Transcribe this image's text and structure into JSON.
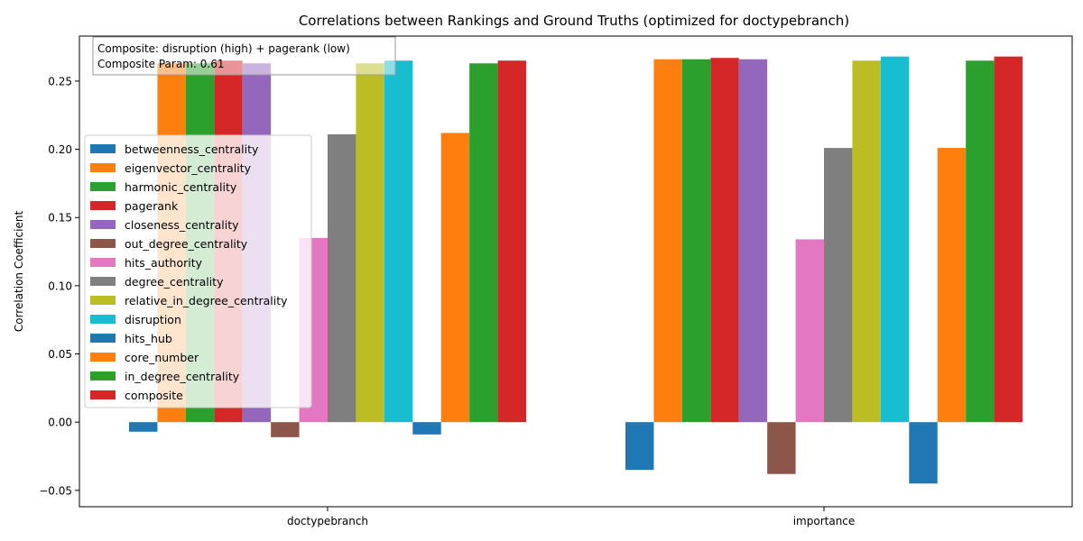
{
  "chart_data": {
    "type": "bar",
    "title": "Correlations between Rankings and Ground Truths (optimized for doctypebranch)",
    "xlabel": "",
    "ylabel": "Correlation Coefficient",
    "ylim": [
      -0.062,
      0.283
    ],
    "yticks": [
      -0.05,
      0.0,
      0.05,
      0.1,
      0.15,
      0.2,
      0.25
    ],
    "ytick_labels": [
      "−0.05",
      "0.00",
      "0.05",
      "0.10",
      "0.15",
      "0.20",
      "0.25"
    ],
    "categories": [
      "doctypebranch",
      "importance"
    ],
    "grid": false,
    "legend_position": "center-left",
    "annotation": {
      "line1": "Composite: disruption (high) + pagerank (low)",
      "line2": "Composite Param: 0.61"
    },
    "series": [
      {
        "name": "betweenness_centrality",
        "color": "#1f77b4",
        "values": [
          -0.007,
          -0.035
        ]
      },
      {
        "name": "eigenvector_centrality",
        "color": "#ff7f0e",
        "values": [
          0.263,
          0.266
        ]
      },
      {
        "name": "harmonic_centrality",
        "color": "#2ca02c",
        "values": [
          0.263,
          0.266
        ]
      },
      {
        "name": "pagerank",
        "color": "#d62728",
        "values": [
          0.265,
          0.267
        ]
      },
      {
        "name": "closeness_centrality",
        "color": "#9467bd",
        "values": [
          0.263,
          0.266
        ]
      },
      {
        "name": "out_degree_centrality",
        "color": "#8c564b",
        "values": [
          -0.011,
          -0.038
        ]
      },
      {
        "name": "hits_authority",
        "color": "#e377c2",
        "values": [
          0.135,
          0.134
        ]
      },
      {
        "name": "degree_centrality",
        "color": "#7f7f7f",
        "values": [
          0.211,
          0.201
        ]
      },
      {
        "name": "relative_in_degree_centrality",
        "color": "#bcbd22",
        "values": [
          0.263,
          0.265
        ]
      },
      {
        "name": "disruption",
        "color": "#17becf",
        "values": [
          0.265,
          0.268
        ]
      },
      {
        "name": "hits_hub",
        "color": "#1f77b4",
        "values": [
          -0.009,
          -0.045
        ]
      },
      {
        "name": "core_number",
        "color": "#ff7f0e",
        "values": [
          0.212,
          0.201
        ]
      },
      {
        "name": "in_degree_centrality",
        "color": "#2ca02c",
        "values": [
          0.263,
          0.265
        ]
      },
      {
        "name": "composite",
        "color": "#d62728",
        "values": [
          0.265,
          0.268
        ]
      }
    ]
  }
}
